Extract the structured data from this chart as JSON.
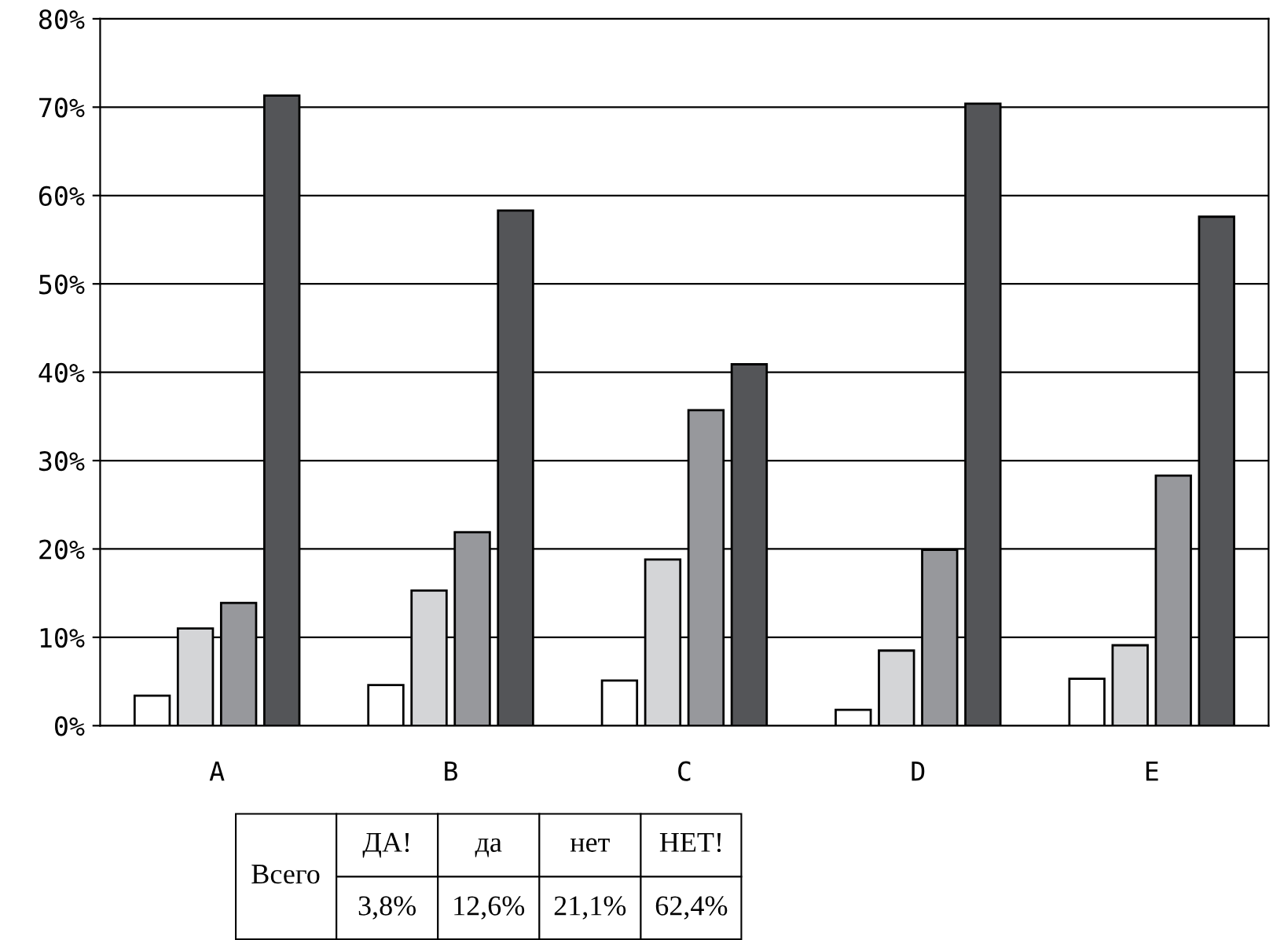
{
  "chart_data": {
    "type": "bar",
    "categories": [
      "A",
      "B",
      "C",
      "D",
      "E"
    ],
    "series": [
      {
        "color": "#ffffff",
        "values": [
          3.4,
          4.6,
          5.1,
          1.8,
          5.3
        ]
      },
      {
        "color": "#d4d5d7",
        "values": [
          11.0,
          15.3,
          18.8,
          8.5,
          9.1
        ]
      },
      {
        "color": "#97989c",
        "values": [
          13.9,
          21.9,
          35.7,
          19.9,
          28.3
        ]
      },
      {
        "color": "#545558",
        "values": [
          71.3,
          58.3,
          40.9,
          70.4,
          57.6
        ]
      }
    ],
    "ylim": [
      0,
      80
    ],
    "yticks": [
      {
        "value": 0,
        "label": "0%"
      },
      {
        "value": 10,
        "label": "10%"
      },
      {
        "value": 20,
        "label": "20%"
      },
      {
        "value": 30,
        "label": "30%"
      },
      {
        "value": 40,
        "label": "40%"
      },
      {
        "value": 50,
        "label": "50%"
      },
      {
        "value": 60,
        "label": "60%"
      },
      {
        "value": 70,
        "label": "70%"
      },
      {
        "value": 80,
        "label": "80%"
      }
    ],
    "grid": "y",
    "annotations": [
      "Всего",
      "ДА!",
      "да",
      "нет",
      "НЕТ!",
      "3,8%",
      "12,6%",
      "21,1%",
      "62,4%"
    ]
  }
}
